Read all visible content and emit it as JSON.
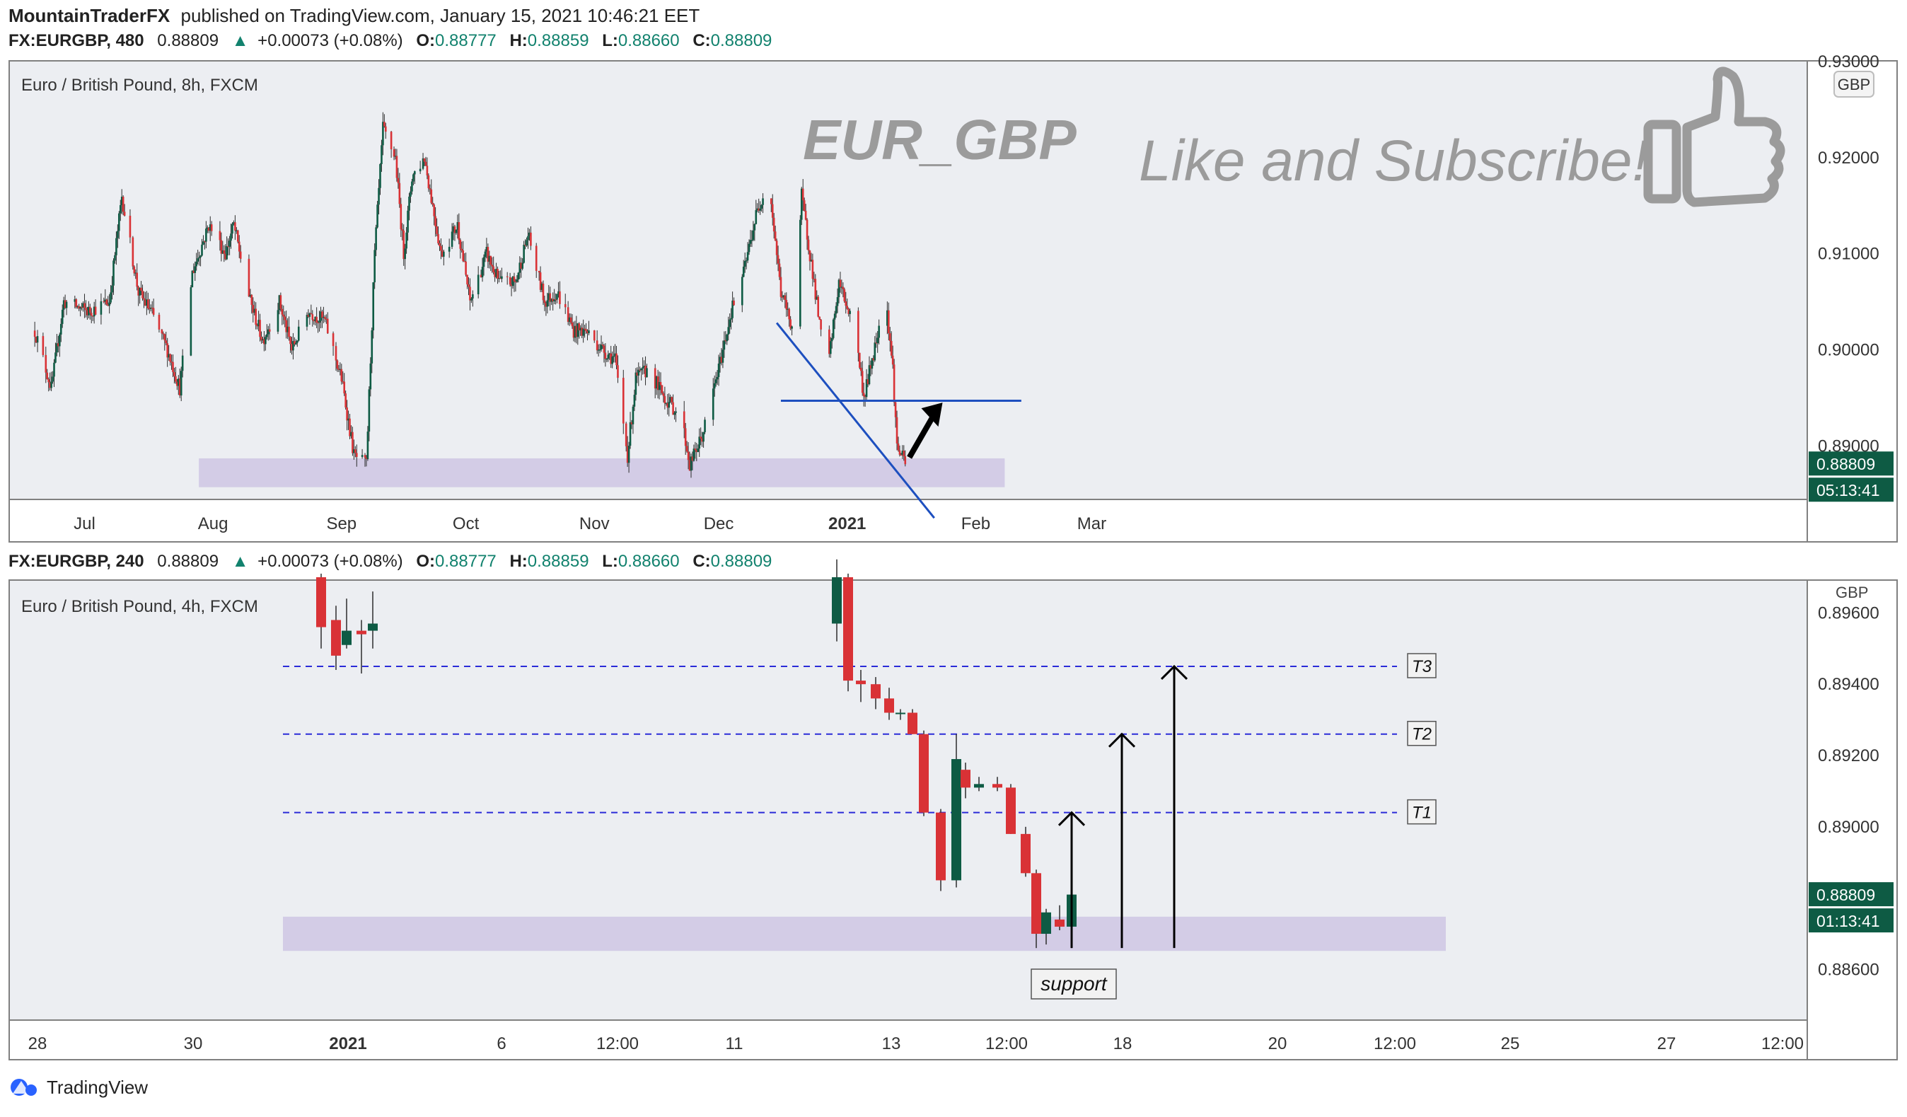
{
  "header": {
    "author": "MountainTraderFX",
    "published": "published on TradingView.com, January 15, 2021 10:46:21 EET"
  },
  "colors": {
    "up": "#0e5b44",
    "down": "#d93236",
    "wick": "#2c2c2c",
    "pane_bg": "#eceef2",
    "zone": "#cfc6e4",
    "trend": "#1d4fbf",
    "target_line": "#2b2bd8",
    "teal": "#12826e",
    "price_tag": "#0e5b44",
    "watermark": "#9b9b9b"
  },
  "icons": [
    "thumbs-up-icon",
    "tradingview-logo-icon"
  ],
  "top": {
    "info": {
      "symbol": "FX:EURGBP, 480",
      "last": "0.88809",
      "change": "+0.00073 (+0.08%)",
      "o_label": "O:",
      "o": "0.88777",
      "h_label": "H:",
      "h": "0.88859",
      "l_label": "L:",
      "l": "0.88660",
      "c_label": "C:",
      "c": "0.88809"
    },
    "pane_title": "Euro / British Pound, 8h, FXCM",
    "currency": "GBP",
    "watermark": "EUR_GBP",
    "promo": "Like and Subscribe!",
    "price_tag": "0.88809",
    "countdown": "05:13:41"
  },
  "bottom": {
    "info": {
      "symbol": "FX:EURGBP, 240",
      "last": "0.88809",
      "change": "+0.00073 (+0.08%)",
      "o_label": "O:",
      "o": "0.88777",
      "h_label": "H:",
      "h": "0.88859",
      "l_label": "L:",
      "l": "0.88660",
      "c_label": "C:",
      "c": "0.88809"
    },
    "pane_title": "Euro / British Pound, 4h, FXCM",
    "currency": "GBP",
    "price_tag": "0.88809",
    "countdown": "01:13:41",
    "targets": [
      "T3",
      "T2",
      "T1"
    ],
    "support_label": "support"
  },
  "footer": {
    "brand": "TradingView"
  },
  "chart_data": [
    {
      "type": "candlestick",
      "title": "Euro / British Pound, 8h, FXCM",
      "x_ticks": [
        "Jul",
        "Aug",
        "Sep",
        "Oct",
        "Nov",
        "Dec",
        "2021",
        "Feb",
        "Mar"
      ],
      "y_ticks": [
        "0.92000",
        "0.91000",
        "0.90000",
        "0.89000"
      ],
      "ylim": [
        0.8845,
        0.93
      ],
      "close_path": [
        [
          "2020-06-19",
          0.902
        ],
        [
          "2020-06-23",
          0.896
        ],
        [
          "2020-06-26",
          0.905
        ],
        [
          "2020-07-02",
          0.904
        ],
        [
          "2020-07-07",
          0.905
        ],
        [
          "2020-07-10",
          0.916
        ],
        [
          "2020-07-14",
          0.906
        ],
        [
          "2020-07-17",
          0.904
        ],
        [
          "2020-07-21",
          0.9
        ],
        [
          "2020-07-24",
          0.896
        ],
        [
          "2020-07-27",
          0.908
        ],
        [
          "2020-07-31",
          0.913
        ],
        [
          "2020-08-04",
          0.91
        ],
        [
          "2020-08-06",
          0.913
        ],
        [
          "2020-08-10",
          0.905
        ],
        [
          "2020-08-13",
          0.901
        ],
        [
          "2020-08-17",
          0.905
        ],
        [
          "2020-08-20",
          0.9
        ],
        [
          "2020-08-24",
          0.904
        ],
        [
          "2020-08-28",
          0.903
        ],
        [
          "2020-09-01",
          0.897
        ],
        [
          "2020-09-04",
          0.889
        ],
        [
          "2020-09-07",
          0.888
        ],
        [
          "2020-09-09",
          0.91
        ],
        [
          "2020-09-11",
          0.923
        ],
        [
          "2020-09-14",
          0.92
        ],
        [
          "2020-09-16",
          0.91
        ],
        [
          "2020-09-18",
          0.918
        ],
        [
          "2020-09-21",
          0.92
        ],
        [
          "2020-09-25",
          0.91
        ],
        [
          "2020-09-29",
          0.913
        ],
        [
          "2020-10-02",
          0.905
        ],
        [
          "2020-10-06",
          0.91
        ],
        [
          "2020-10-09",
          0.907
        ],
        [
          "2020-10-13",
          0.907
        ],
        [
          "2020-10-16",
          0.912
        ],
        [
          "2020-10-20",
          0.905
        ],
        [
          "2020-10-23",
          0.906
        ],
        [
          "2020-10-27",
          0.902
        ],
        [
          "2020-10-30",
          0.902
        ],
        [
          "2020-11-03",
          0.9
        ],
        [
          "2020-11-06",
          0.899
        ],
        [
          "2020-11-09",
          0.889
        ],
        [
          "2020-11-11",
          0.897
        ],
        [
          "2020-11-14",
          0.898
        ],
        [
          "2020-11-18",
          0.895
        ],
        [
          "2020-11-22",
          0.893
        ],
        [
          "2020-11-24",
          0.888
        ],
        [
          "2020-11-27",
          0.891
        ],
        [
          "2020-12-01",
          0.898
        ],
        [
          "2020-12-04",
          0.904
        ],
        [
          "2020-12-07",
          0.908
        ],
        [
          "2020-12-10",
          0.914
        ],
        [
          "2020-12-13",
          0.918
        ],
        [
          "2020-12-16",
          0.906
        ],
        [
          "2020-12-19",
          0.902
        ],
        [
          "2020-12-21",
          0.916
        ],
        [
          "2020-12-24",
          0.907
        ],
        [
          "2020-12-27",
          0.897
        ],
        [
          "2020-12-30",
          0.907
        ],
        [
          "2021-01-03",
          0.902
        ],
        [
          "2021-01-05",
          0.895
        ],
        [
          "2021-01-08",
          0.901
        ],
        [
          "2021-01-10",
          0.907
        ],
        [
          "2021-01-12",
          0.898
        ],
        [
          "2021-01-13",
          0.89
        ],
        [
          "2021-01-15",
          0.8881
        ]
      ],
      "support_zone": [
        0.8857,
        0.8887
      ],
      "horizontal_level": 0.8947,
      "trendline": [
        [
          "2020-12-15",
          0.9028
        ],
        [
          "2021-01-22",
          0.8825
        ]
      ],
      "last_price": 0.88809
    },
    {
      "type": "candlestick",
      "title": "Euro / British Pound, 4h, FXCM",
      "x_ticks": [
        "28",
        "30",
        "2021",
        "6",
        "12:00",
        "11",
        "13",
        "12:00",
        "18",
        "20",
        "12:00",
        "25",
        "27",
        "12:00"
      ],
      "y_ticks": [
        "0.89600",
        "0.89400",
        "0.89200",
        "0.89000",
        "0.88600"
      ],
      "ylim": [
        0.8846,
        0.8969
      ],
      "candles": [
        {
          "o": 0.897,
          "h": 0.8971,
          "l": 0.895,
          "c": 0.8956
        },
        {
          "o": 0.8958,
          "h": 0.8962,
          "l": 0.8944,
          "c": 0.8948
        },
        {
          "o": 0.8951,
          "h": 0.8964,
          "l": 0.895,
          "c": 0.8955
        },
        {
          "o": 0.8955,
          "h": 0.8958,
          "l": 0.8943,
          "c": 0.8954
        },
        {
          "o": 0.8955,
          "h": 0.8966,
          "l": 0.895,
          "c": 0.8957
        },
        {
          "o": 0.8957,
          "h": 0.8975,
          "l": 0.8952,
          "c": 0.897
        },
        {
          "o": 0.897,
          "h": 0.8971,
          "l": 0.8938,
          "c": 0.8941
        },
        {
          "o": 0.8941,
          "h": 0.8944,
          "l": 0.8935,
          "c": 0.894
        },
        {
          "o": 0.894,
          "h": 0.8942,
          "l": 0.8933,
          "c": 0.8936
        },
        {
          "o": 0.8936,
          "h": 0.8939,
          "l": 0.893,
          "c": 0.8932
        },
        {
          "o": 0.8932,
          "h": 0.8933,
          "l": 0.893,
          "c": 0.8932
        },
        {
          "o": 0.8932,
          "h": 0.8933,
          "l": 0.8926,
          "c": 0.8926
        },
        {
          "o": 0.8926,
          "h": 0.8927,
          "l": 0.8903,
          "c": 0.8904
        },
        {
          "o": 0.8904,
          "h": 0.8905,
          "l": 0.8882,
          "c": 0.8885
        },
        {
          "o": 0.8885,
          "h": 0.8926,
          "l": 0.8883,
          "c": 0.8919
        },
        {
          "o": 0.8916,
          "h": 0.8918,
          "l": 0.8908,
          "c": 0.8911
        },
        {
          "o": 0.8911,
          "h": 0.8914,
          "l": 0.891,
          "c": 0.8912
        },
        {
          "o": 0.8912,
          "h": 0.8914,
          "l": 0.891,
          "c": 0.8911
        },
        {
          "o": 0.8911,
          "h": 0.8912,
          "l": 0.8898,
          "c": 0.8898
        },
        {
          "o": 0.8898,
          "h": 0.89,
          "l": 0.8886,
          "c": 0.8887
        },
        {
          "o": 0.8887,
          "h": 0.8888,
          "l": 0.8866,
          "c": 0.887
        },
        {
          "o": 0.887,
          "h": 0.8877,
          "l": 0.8867,
          "c": 0.8876
        },
        {
          "o": 0.8874,
          "h": 0.8878,
          "l": 0.8871,
          "c": 0.8872
        },
        {
          "o": 0.8872,
          "h": 0.8882,
          "l": 0.8866,
          "c": 0.8881
        }
      ],
      "target_levels": {
        "T1": 0.8904,
        "T2": 0.8926,
        "T3": 0.8945
      },
      "support_zone": [
        0.8866,
        0.8874
      ],
      "last_price": 0.88809
    }
  ]
}
